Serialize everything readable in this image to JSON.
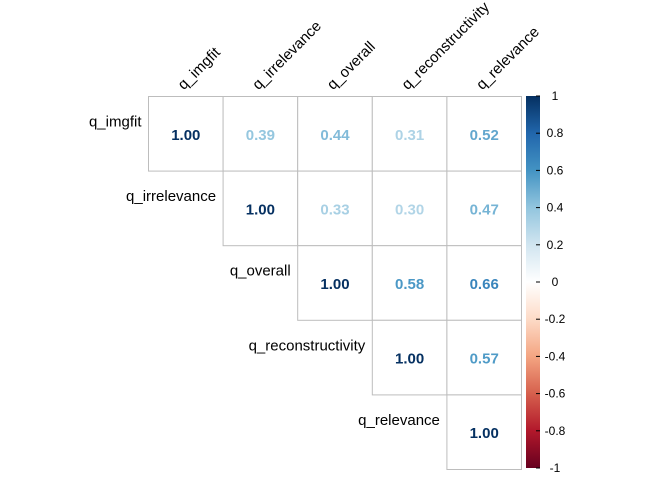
{
  "chart_data": {
    "type": "heatmap",
    "variables": [
      "q_imgfit",
      "q_irrelevance",
      "q_overall",
      "q_reconstructivity",
      "q_relevance"
    ],
    "matrix_upper": [
      [
        "1.00",
        "0.39",
        "0.44",
        "0.31",
        "0.52"
      ],
      [
        null,
        "1.00",
        "0.33",
        "0.30",
        "0.47"
      ],
      [
        null,
        null,
        "1.00",
        "0.58",
        "0.66"
      ],
      [
        null,
        null,
        null,
        "1.00",
        "0.57"
      ],
      [
        null,
        null,
        null,
        null,
        "1.00"
      ]
    ],
    "colorbar": {
      "range": [
        -1,
        1
      ],
      "ticks": [
        "1",
        "0.8",
        "0.6",
        "0.4",
        "0.2",
        "0",
        "-0.2",
        "-0.4",
        "-0.6",
        "-0.8",
        "-1"
      ],
      "colors": [
        "#67001F",
        "#B2182B",
        "#D6604D",
        "#F4A582",
        "#FDDBC7",
        "#FFFFFF",
        "#D1E5F0",
        "#92C5DE",
        "#4393C3",
        "#2166AC",
        "#053061"
      ]
    },
    "grid": true,
    "legend": "right"
  }
}
